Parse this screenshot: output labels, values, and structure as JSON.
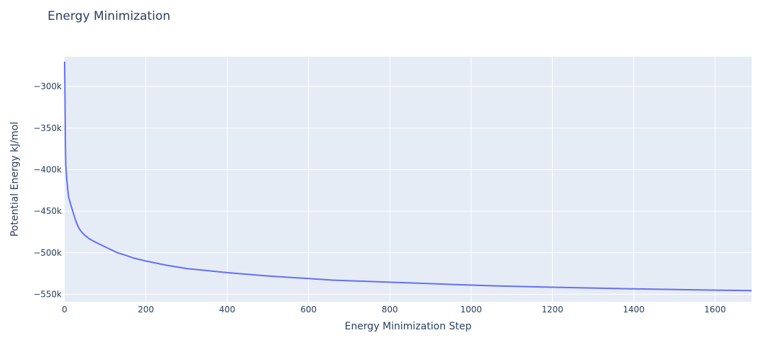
{
  "chart_data": {
    "type": "line",
    "title": "Energy Minimization",
    "xlabel": "Energy Minimization Step",
    "ylabel": "Potential Energy kJ/mol",
    "xlim": [
      0,
      1690
    ],
    "ylim": [
      -559000,
      -264000
    ],
    "xticks": [
      0,
      200,
      400,
      600,
      800,
      1000,
      1200,
      1400,
      1600
    ],
    "xtick_labels": [
      "0",
      "200",
      "400",
      "600",
      "800",
      "1000",
      "1200",
      "1400",
      "1600"
    ],
    "yticks": [
      -300000,
      -350000,
      -400000,
      -450000,
      -500000,
      -550000
    ],
    "ytick_labels": [
      "−300k",
      "−350k",
      "−400k",
      "−450k",
      "−500k",
      "−550k"
    ],
    "grid": true,
    "colors": {
      "line": "#636efa",
      "plot_bg": "#e5ecf6",
      "grid": "#ffffff",
      "text": "#2a3f5f"
    },
    "series": [
      {
        "x": [
          0,
          1,
          2,
          3,
          5,
          8,
          10,
          15,
          20,
          25,
          30,
          35,
          40,
          50,
          60,
          75,
          100,
          130,
          150,
          170,
          200,
          250,
          300,
          400,
          500,
          600,
          660,
          800,
          1000,
          1070,
          1200,
          1400,
          1600,
          1690
        ],
        "y": [
          -270000,
          -320000,
          -370000,
          -395000,
          -410000,
          -425000,
          -433000,
          -442000,
          -450000,
          -458000,
          -465000,
          -470000,
          -474000,
          -479000,
          -483000,
          -487000,
          -493000,
          -500000,
          -503000,
          -506500,
          -510000,
          -515000,
          -519000,
          -524000,
          -528000,
          -531000,
          -533000,
          -535500,
          -539000,
          -540000,
          -541500,
          -543500,
          -545000,
          -545500
        ]
      }
    ]
  }
}
